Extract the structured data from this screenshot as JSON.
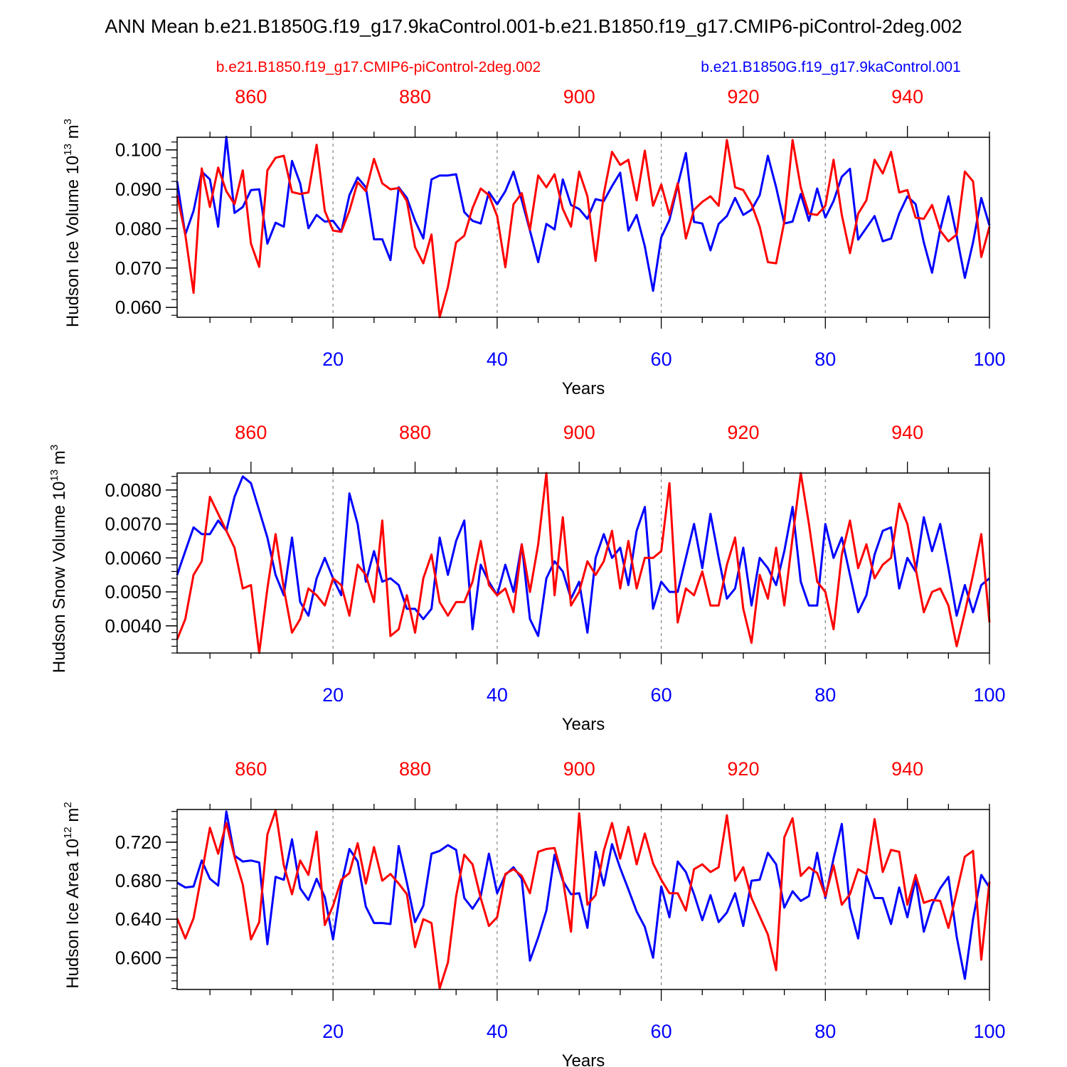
{
  "title": "ANN Mean b.e21.B1850G.f19_g17.9kaControl.001-b.e21.B1850.f19_g17.CMIP6-piControl-2deg.002",
  "legend": {
    "red_label": "b.e21.B1850.f19_g17.CMIP6-piControl-2deg.002",
    "blue_label": "b.e21.B1850G.f19_g17.9kaControl.001"
  },
  "colors": {
    "red": "#ff0000",
    "blue": "#0000ff",
    "axis": "#000000",
    "grid": "#808080"
  },
  "chart_data": [
    {
      "type": "line",
      "ylabel": "Hudson Ice Volume 10^13 m^3",
      "ylabel_main": "Hudson Ice Volume 10",
      "ylabel_exp": "13",
      "ylabel_unit": "m",
      "ylabel_unit_exp": "3",
      "xlabel": "Years",
      "xlim": [
        1,
        100
      ],
      "ylim": [
        0.0575,
        0.1032
      ],
      "yticks": [
        0.06,
        0.07,
        0.08,
        0.09,
        0.1
      ],
      "ytick_labels": [
        "0.060",
        "0.070",
        "0.080",
        "0.090",
        "0.100"
      ],
      "ytick_minor": 0.002,
      "xticks_bottom": [
        20,
        40,
        60,
        80,
        100
      ],
      "xticks_top_labels": [
        "860",
        "880",
        "900",
        "920",
        "940"
      ],
      "series": [
        {
          "name": "b.e21.B1850G.f19_g17.9kaControl.001",
          "color": "blue",
          "values": [
            0.092,
            0.0785,
            0.0845,
            0.0945,
            0.0925,
            0.0805,
            0.1033,
            0.084,
            0.0855,
            0.0898,
            0.09,
            0.0762,
            0.0815,
            0.0805,
            0.0972,
            0.0915,
            0.0801,
            0.0835,
            0.0818,
            0.082,
            0.0792,
            0.0885,
            0.093,
            0.0905,
            0.0773,
            0.0773,
            0.072,
            0.0905,
            0.0878,
            0.082,
            0.0775,
            0.0925,
            0.0935,
            0.0935,
            0.0938,
            0.0842,
            0.082,
            0.0813,
            0.0893,
            0.0862,
            0.0895,
            0.0945,
            0.0872,
            0.0795,
            0.0715,
            0.0812,
            0.0798,
            0.0925,
            0.086,
            0.085,
            0.0825,
            0.0875,
            0.087,
            0.0908,
            0.0942,
            0.0795,
            0.0835,
            0.0755,
            0.0642,
            0.0778,
            0.0822,
            0.091,
            0.0992,
            0.0817,
            0.0813,
            0.0745,
            0.0812,
            0.0832,
            0.0878,
            0.0835,
            0.0848,
            0.0885,
            0.0985,
            0.0905,
            0.0813,
            0.0818,
            0.0888,
            0.082,
            0.0902,
            0.0828,
            0.087,
            0.0932,
            0.0952,
            0.0772,
            0.0802,
            0.0832,
            0.0768,
            0.0775,
            0.0838,
            0.0882,
            0.0862,
            0.0765,
            0.0688,
            0.0798,
            0.0882,
            0.0782,
            0.0675,
            0.0765,
            0.0878,
            0.0808
          ]
        },
        {
          "name": "b.e21.B1850.f19_g17.CMIP6-piControl-2deg.002",
          "color": "red",
          "values": [
            0.0885,
            0.0785,
            0.0637,
            0.0953,
            0.0855,
            0.0955,
            0.0895,
            0.0862,
            0.0948,
            0.0762,
            0.0703,
            0.0948,
            0.098,
            0.0985,
            0.0893,
            0.0888,
            0.0892,
            0.1013,
            0.0845,
            0.0795,
            0.0792,
            0.0845,
            0.0918,
            0.0895,
            0.0977,
            0.0915,
            0.09,
            0.0903,
            0.087,
            0.0753,
            0.0712,
            0.0785,
            0.0575,
            0.0652,
            0.0765,
            0.0782,
            0.0852,
            0.0902,
            0.0885,
            0.0832,
            0.0702,
            0.0862,
            0.089,
            0.0797,
            0.0935,
            0.0905,
            0.0938,
            0.085,
            0.0805,
            0.0945,
            0.0882,
            0.0718,
            0.0888,
            0.0995,
            0.0962,
            0.0975,
            0.0872,
            0.0998,
            0.0858,
            0.0912,
            0.0835,
            0.0915,
            0.0775,
            0.0848,
            0.0868,
            0.0882,
            0.0858,
            0.1025,
            0.0905,
            0.0898,
            0.0862,
            0.0805,
            0.0715,
            0.0712,
            0.0818,
            0.1025,
            0.0905,
            0.0838,
            0.0835,
            0.0858,
            0.0975,
            0.0835,
            0.0738,
            0.0838,
            0.0872,
            0.0975,
            0.094,
            0.0995,
            0.0892,
            0.0898,
            0.0828,
            0.0825,
            0.086,
            0.0795,
            0.0768,
            0.0785,
            0.0945,
            0.092,
            0.0728,
            0.0805
          ]
        }
      ]
    },
    {
      "type": "line",
      "ylabel": "Hudson Snow Volume 10^13 m^3",
      "ylabel_main": "Hudson Snow Volume 10",
      "ylabel_exp": "13",
      "ylabel_unit": "m",
      "ylabel_unit_exp": "3",
      "xlabel": "Years",
      "xlim": [
        1,
        100
      ],
      "ylim": [
        0.0032,
        0.0085
      ],
      "yticks": [
        0.004,
        0.005,
        0.006,
        0.007,
        0.008
      ],
      "ytick_labels": [
        "0.0040",
        "0.0050",
        "0.0060",
        "0.0070",
        "0.0080"
      ],
      "ytick_minor": 0.0002,
      "xticks_bottom": [
        20,
        40,
        60,
        80,
        100
      ],
      "xticks_top_labels": [
        "860",
        "880",
        "900",
        "920",
        "940"
      ],
      "series": [
        {
          "name": "b.e21.B1850G.f19_g17.9kaControl.001",
          "color": "blue",
          "values": [
            0.0055,
            0.0062,
            0.0069,
            0.0067,
            0.0067,
            0.0071,
            0.0068,
            0.0078,
            0.0084,
            0.0082,
            0.0074,
            0.0066,
            0.0055,
            0.0049,
            0.0066,
            0.0047,
            0.0043,
            0.0054,
            0.006,
            0.0054,
            0.0049,
            0.0079,
            0.007,
            0.0053,
            0.0062,
            0.0053,
            0.0054,
            0.0052,
            0.0045,
            0.0045,
            0.0042,
            0.0045,
            0.0066,
            0.0055,
            0.0065,
            0.0071,
            0.0039,
            0.0058,
            0.0053,
            0.0049,
            0.0058,
            0.005,
            0.0064,
            0.0042,
            0.0037,
            0.0054,
            0.0059,
            0.0056,
            0.0048,
            0.0053,
            0.0038,
            0.006,
            0.0067,
            0.006,
            0.0063,
            0.0052,
            0.0068,
            0.0075,
            0.0045,
            0.0053,
            0.005,
            0.005,
            0.006,
            0.007,
            0.0057,
            0.0073,
            0.006,
            0.0048,
            0.0051,
            0.0063,
            0.0046,
            0.006,
            0.0057,
            0.0052,
            0.0062,
            0.0075,
            0.0053,
            0.0046,
            0.0046,
            0.007,
            0.006,
            0.0066,
            0.0055,
            0.0044,
            0.0049,
            0.0061,
            0.0068,
            0.0069,
            0.0051,
            0.006,
            0.0056,
            0.0072,
            0.0062,
            0.007,
            0.0057,
            0.0043,
            0.0052,
            0.0044,
            0.0052,
            0.0054
          ]
        },
        {
          "name": "b.e21.B1850.f19_g17.CMIP6-piControl-2deg.002",
          "color": "red",
          "values": [
            0.0036,
            0.0042,
            0.0055,
            0.0059,
            0.0078,
            0.0073,
            0.0068,
            0.0063,
            0.0051,
            0.0052,
            0.0032,
            0.0051,
            0.0067,
            0.0051,
            0.0038,
            0.0042,
            0.0051,
            0.0049,
            0.0046,
            0.0054,
            0.0052,
            0.0043,
            0.0058,
            0.0055,
            0.0047,
            0.0071,
            0.0037,
            0.0039,
            0.0049,
            0.0038,
            0.0054,
            0.0061,
            0.0047,
            0.0043,
            0.0047,
            0.0047,
            0.0053,
            0.0065,
            0.0052,
            0.0049,
            0.0051,
            0.0044,
            0.0064,
            0.005,
            0.0064,
            0.0085,
            0.0049,
            0.0072,
            0.0046,
            0.005,
            0.0059,
            0.0055,
            0.0059,
            0.0068,
            0.0051,
            0.0065,
            0.0051,
            0.006,
            0.006,
            0.0062,
            0.0082,
            0.0041,
            0.0051,
            0.0049,
            0.0056,
            0.0046,
            0.0046,
            0.0058,
            0.0066,
            0.0045,
            0.0035,
            0.0055,
            0.0048,
            0.0063,
            0.0046,
            0.0066,
            0.0085,
            0.007,
            0.0053,
            0.005,
            0.0039,
            0.0061,
            0.0071,
            0.0057,
            0.0064,
            0.0054,
            0.0058,
            0.006,
            0.0076,
            0.007,
            0.0057,
            0.0044,
            0.005,
            0.0051,
            0.0046,
            0.0034,
            0.0044,
            0.0055,
            0.0067,
            0.0041
          ]
        }
      ]
    },
    {
      "type": "line",
      "ylabel": "Hudson Ice Area 10^12 m^2",
      "ylabel_main": "Hudson Ice Area 10",
      "ylabel_exp": "12",
      "ylabel_unit": "m",
      "ylabel_unit_exp": "2",
      "xlabel": "Years",
      "xlim": [
        1,
        100
      ],
      "ylim": [
        0.567,
        0.754
      ],
      "yticks": [
        0.6,
        0.64,
        0.68,
        0.72
      ],
      "ytick_labels": [
        "0.600",
        "0.640",
        "0.680",
        "0.720"
      ],
      "ytick_minor": 0.008,
      "xticks_bottom": [
        20,
        40,
        60,
        80,
        100
      ],
      "xticks_top_labels": [
        "860",
        "880",
        "900",
        "920",
        "940"
      ],
      "series": [
        {
          "name": "b.e21.B1850G.f19_g17.9kaControl.001",
          "color": "blue",
          "values": [
            0.678,
            0.673,
            0.674,
            0.701,
            0.682,
            0.675,
            0.752,
            0.706,
            0.7,
            0.701,
            0.699,
            0.614,
            0.684,
            0.681,
            0.723,
            0.672,
            0.66,
            0.682,
            0.663,
            0.619,
            0.675,
            0.713,
            0.7,
            0.653,
            0.636,
            0.636,
            0.635,
            0.716,
            0.678,
            0.637,
            0.654,
            0.708,
            0.711,
            0.717,
            0.712,
            0.662,
            0.651,
            0.664,
            0.708,
            0.667,
            0.686,
            0.694,
            0.682,
            0.597,
            0.621,
            0.649,
            0.707,
            0.68,
            0.666,
            0.667,
            0.631,
            0.71,
            0.675,
            0.718,
            0.693,
            0.671,
            0.648,
            0.632,
            0.6,
            0.674,
            0.642,
            0.7,
            0.689,
            0.666,
            0.639,
            0.665,
            0.637,
            0.647,
            0.667,
            0.633,
            0.68,
            0.681,
            0.709,
            0.697,
            0.652,
            0.669,
            0.659,
            0.664,
            0.709,
            0.662,
            0.703,
            0.739,
            0.652,
            0.62,
            0.685,
            0.662,
            0.662,
            0.635,
            0.673,
            0.642,
            0.682,
            0.627,
            0.655,
            0.672,
            0.684,
            0.622,
            0.578,
            0.64,
            0.686,
            0.673
          ]
        },
        {
          "name": "b.e21.B1850.f19_g17.CMIP6-piControl-2deg.002",
          "color": "red",
          "values": [
            0.641,
            0.62,
            0.641,
            0.687,
            0.735,
            0.708,
            0.74,
            0.705,
            0.676,
            0.619,
            0.637,
            0.728,
            0.753,
            0.696,
            0.666,
            0.701,
            0.686,
            0.731,
            0.634,
            0.654,
            0.681,
            0.688,
            0.719,
            0.677,
            0.715,
            0.68,
            0.687,
            0.677,
            0.666,
            0.611,
            0.64,
            0.636,
            0.568,
            0.595,
            0.664,
            0.707,
            0.697,
            0.662,
            0.633,
            0.642,
            0.687,
            0.692,
            0.685,
            0.667,
            0.71,
            0.713,
            0.714,
            0.682,
            0.627,
            0.75,
            0.655,
            0.665,
            0.711,
            0.74,
            0.703,
            0.736,
            0.697,
            0.729,
            0.698,
            0.681,
            0.667,
            0.667,
            0.649,
            0.692,
            0.697,
            0.689,
            0.694,
            0.748,
            0.68,
            0.694,
            0.662,
            0.643,
            0.624,
            0.587,
            0.725,
            0.745,
            0.685,
            0.694,
            0.688,
            0.664,
            0.696,
            0.655,
            0.666,
            0.692,
            0.687,
            0.744,
            0.689,
            0.712,
            0.71,
            0.655,
            0.686,
            0.657,
            0.66,
            0.659,
            0.631,
            0.668,
            0.705,
            0.711,
            0.598,
            0.679
          ]
        }
      ]
    }
  ]
}
